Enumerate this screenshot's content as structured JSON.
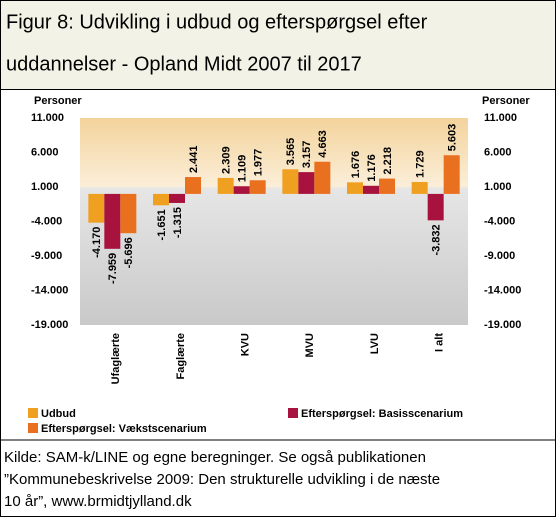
{
  "chart_data": {
    "type": "bar",
    "title": [
      "Figur 8: Udvikling i udbud og efterspørgsel efter",
      "uddannelser - Opland Midt 2007 til 2017"
    ],
    "ylabel": "Personer",
    "y2label": "Personer",
    "categories": [
      "Ufaglærte",
      "Faglærte",
      "KVU",
      "MVU",
      "LVU",
      "I alt"
    ],
    "series": [
      {
        "name": "Udbud",
        "color": "#f0a020",
        "values": [
          -4170,
          -1651,
          2309,
          3565,
          1676,
          1729
        ],
        "value_labels": [
          "-4.170",
          "-1.651",
          "2.309",
          "3.565",
          "1.676",
          "1.729"
        ]
      },
      {
        "name": "Efterspørgsel: Basisscenarium",
        "color": "#a8123e",
        "values": [
          -7959,
          -1315,
          1109,
          3157,
          1176,
          -3832
        ],
        "value_labels": [
          "-7.959",
          "-1.315",
          "1.109",
          "3.157",
          "1.176",
          "-3.832"
        ]
      },
      {
        "name": "Efterspørgsel: Vækstscenarium",
        "color": "#e8701e",
        "values": [
          -5696,
          2441,
          1977,
          4663,
          2218,
          5603
        ],
        "value_labels": [
          "-5.696",
          "2.441",
          "1.977",
          "4.663",
          "2.218",
          "5.603"
        ]
      }
    ],
    "ylim": [
      -19000,
      11000
    ],
    "yticks": [
      {
        "value": 11000,
        "label": "11.000"
      },
      {
        "value": 6000,
        "label": "6.000"
      },
      {
        "value": 1000,
        "label": "1.000"
      },
      {
        "value": -4000,
        "label": "-4.000"
      },
      {
        "value": -9000,
        "label": "-9.000"
      },
      {
        "value": -14000,
        "label": "-14.000"
      },
      {
        "value": -19000,
        "label": "-19.000"
      }
    ],
    "source": [
      "Kilde: SAM-k/LINE og egne beregninger. Se også publikationen",
      "”Kommunebeskrivelse 2009: Den strukturelle udvikling i de næste",
      "10 år”, www.brmidtjylland.dk"
    ]
  }
}
